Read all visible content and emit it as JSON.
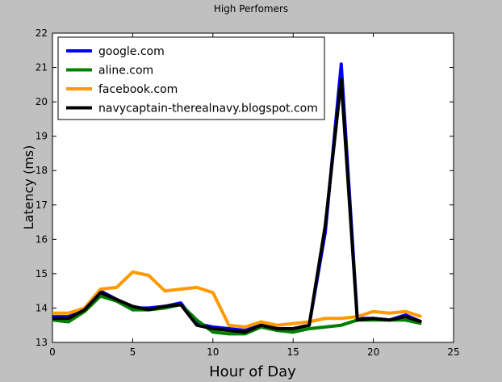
{
  "chart_data": {
    "type": "line",
    "title": "High Perfomers",
    "xlabel": "Hour of Day",
    "ylabel": "Latency (ms)",
    "xlim": [
      0,
      25
    ],
    "ylim": [
      13,
      22
    ],
    "xticks": [
      0,
      5,
      10,
      15,
      20,
      25
    ],
    "yticks": [
      13,
      14,
      15,
      16,
      17,
      18,
      19,
      20,
      21,
      22
    ],
    "grid": false,
    "legend_position": "top-left",
    "x": [
      0,
      1,
      2,
      3,
      4,
      5,
      6,
      7,
      8,
      9,
      10,
      11,
      12,
      13,
      14,
      15,
      16,
      17,
      18,
      19,
      20,
      21,
      22,
      23
    ],
    "series": [
      {
        "name": "google.com",
        "color": "#0000ff",
        "values": [
          13.75,
          13.75,
          13.95,
          14.5,
          14.25,
          14.0,
          14.0,
          14.05,
          14.15,
          13.55,
          13.45,
          13.4,
          13.35,
          13.5,
          13.4,
          13.4,
          13.5,
          16.2,
          21.1,
          13.7,
          13.7,
          13.65,
          13.8,
          13.6
        ]
      },
      {
        "name": "aline.com",
        "color": "#008000",
        "values": [
          13.65,
          13.6,
          13.9,
          14.35,
          14.2,
          13.95,
          13.95,
          14.0,
          14.1,
          13.65,
          13.3,
          13.25,
          13.25,
          13.45,
          13.35,
          13.3,
          13.4,
          13.45,
          13.5,
          13.65,
          13.65,
          13.65,
          13.65,
          13.55
        ]
      },
      {
        "name": "facebook.com",
        "color": "#ff9900",
        "values": [
          13.85,
          13.85,
          14.0,
          14.55,
          14.6,
          15.05,
          14.95,
          14.5,
          14.55,
          14.6,
          14.45,
          13.5,
          13.45,
          13.6,
          13.5,
          13.55,
          13.6,
          13.7,
          13.7,
          13.75,
          13.9,
          13.85,
          13.9,
          13.75
        ]
      },
      {
        "name": "navycaptain-therealnavy.blogspot.com",
        "color": "#000000",
        "values": [
          13.7,
          13.7,
          13.95,
          14.45,
          14.25,
          14.05,
          13.95,
          14.05,
          14.1,
          13.5,
          13.4,
          13.35,
          13.3,
          13.5,
          13.4,
          13.4,
          13.5,
          16.4,
          20.65,
          13.65,
          13.7,
          13.65,
          13.75,
          13.6
        ]
      }
    ]
  }
}
